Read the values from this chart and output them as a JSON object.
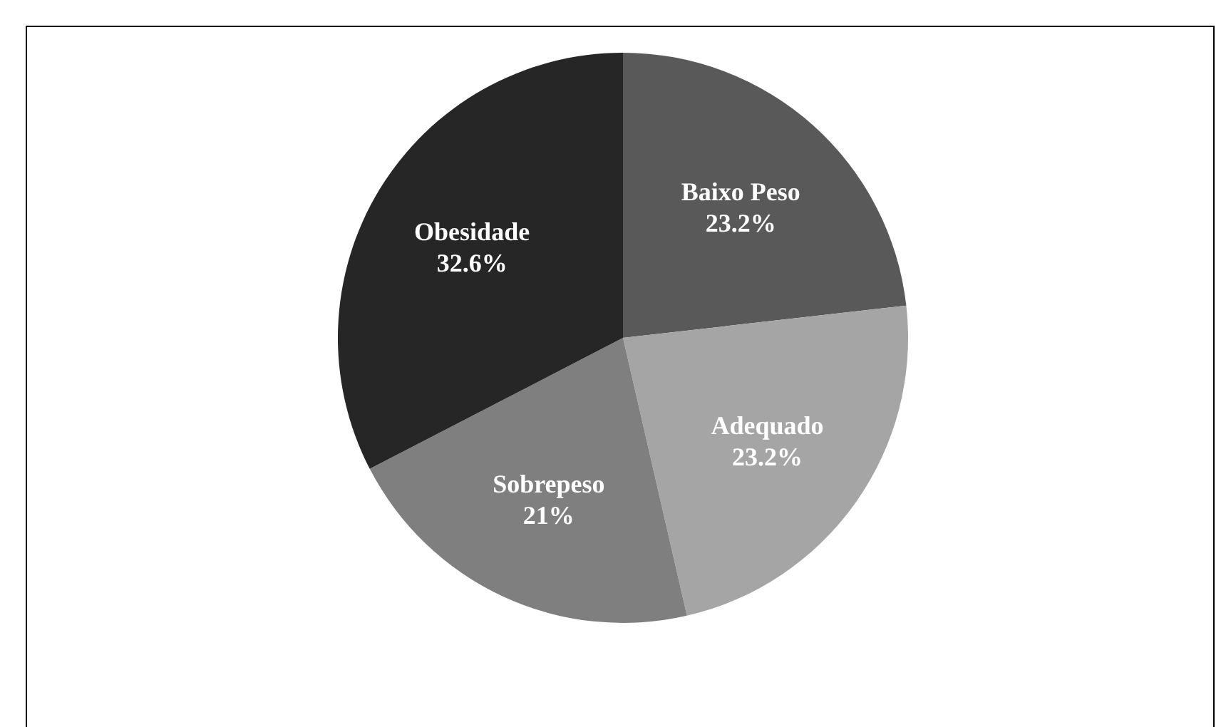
{
  "chart_data": {
    "type": "pie",
    "categories": [
      "Baixo Peso",
      "Adequado",
      "Sobrepeso",
      "Obesidade"
    ],
    "values": [
      23.2,
      23.2,
      21,
      32.6
    ],
    "value_labels": [
      "23.2%",
      "23.2%",
      "21%",
      "32.6%"
    ],
    "colors": [
      "#595959",
      "#a5a5a5",
      "#7f7f7f",
      "#262626"
    ],
    "legend": false
  }
}
